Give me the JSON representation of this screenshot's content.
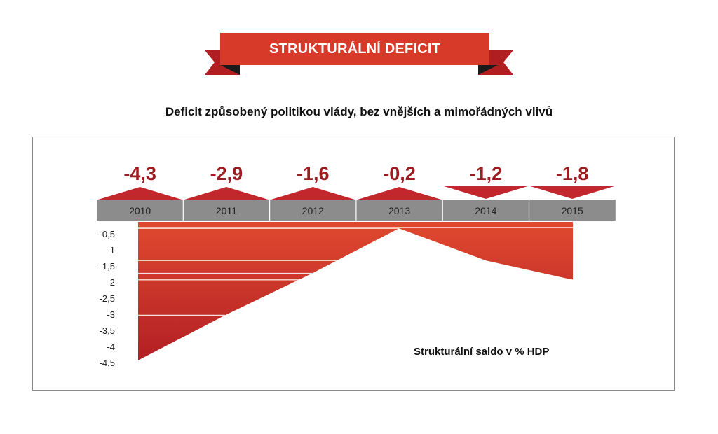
{
  "banner": {
    "title": "STRUKTURÁLNÍ DEFICIT"
  },
  "subtitle": "Deficit způsobený politikou vlády, bez vnějších a mimořádných vlivů",
  "note": "Strukturální saldo v % HDP",
  "colors": {
    "accent": "#c1272d",
    "banner": "#d83a2a",
    "banner_dark": "#1a1a1a",
    "value_text": "#9d1c20",
    "year_bar": "#8c8c8c",
    "area_top": "#e0492f",
    "area_bottom": "#b21f24"
  },
  "chart_data": {
    "type": "area",
    "categories": [
      "2010",
      "2011",
      "2012",
      "2013",
      "2014",
      "2015"
    ],
    "values": [
      -4.3,
      -2.9,
      -1.6,
      -0.2,
      -1.2,
      -1.8
    ],
    "value_labels": [
      "-4,3",
      "-2,9",
      "-1,6",
      "-0,2",
      "-1,2",
      "-1,8"
    ],
    "direction": [
      "up",
      "up",
      "up",
      "up",
      "down",
      "down"
    ],
    "y_ticks": [
      -0.5,
      -1,
      -1.5,
      -2,
      -2.5,
      -3,
      -3.5,
      -4,
      -4.5
    ],
    "y_tick_labels": [
      "-0,5",
      "-1",
      "-1,5",
      "-2",
      "-2,5",
      "-3",
      "-3,5",
      "-4",
      "-4,5"
    ],
    "ylim": [
      -4.5,
      0
    ],
    "title": "Deficit způsobený politikou vlády, bez vnějších a mimořádných vlivů",
    "ylabel": "Strukturální saldo v % HDP",
    "grid": true
  }
}
